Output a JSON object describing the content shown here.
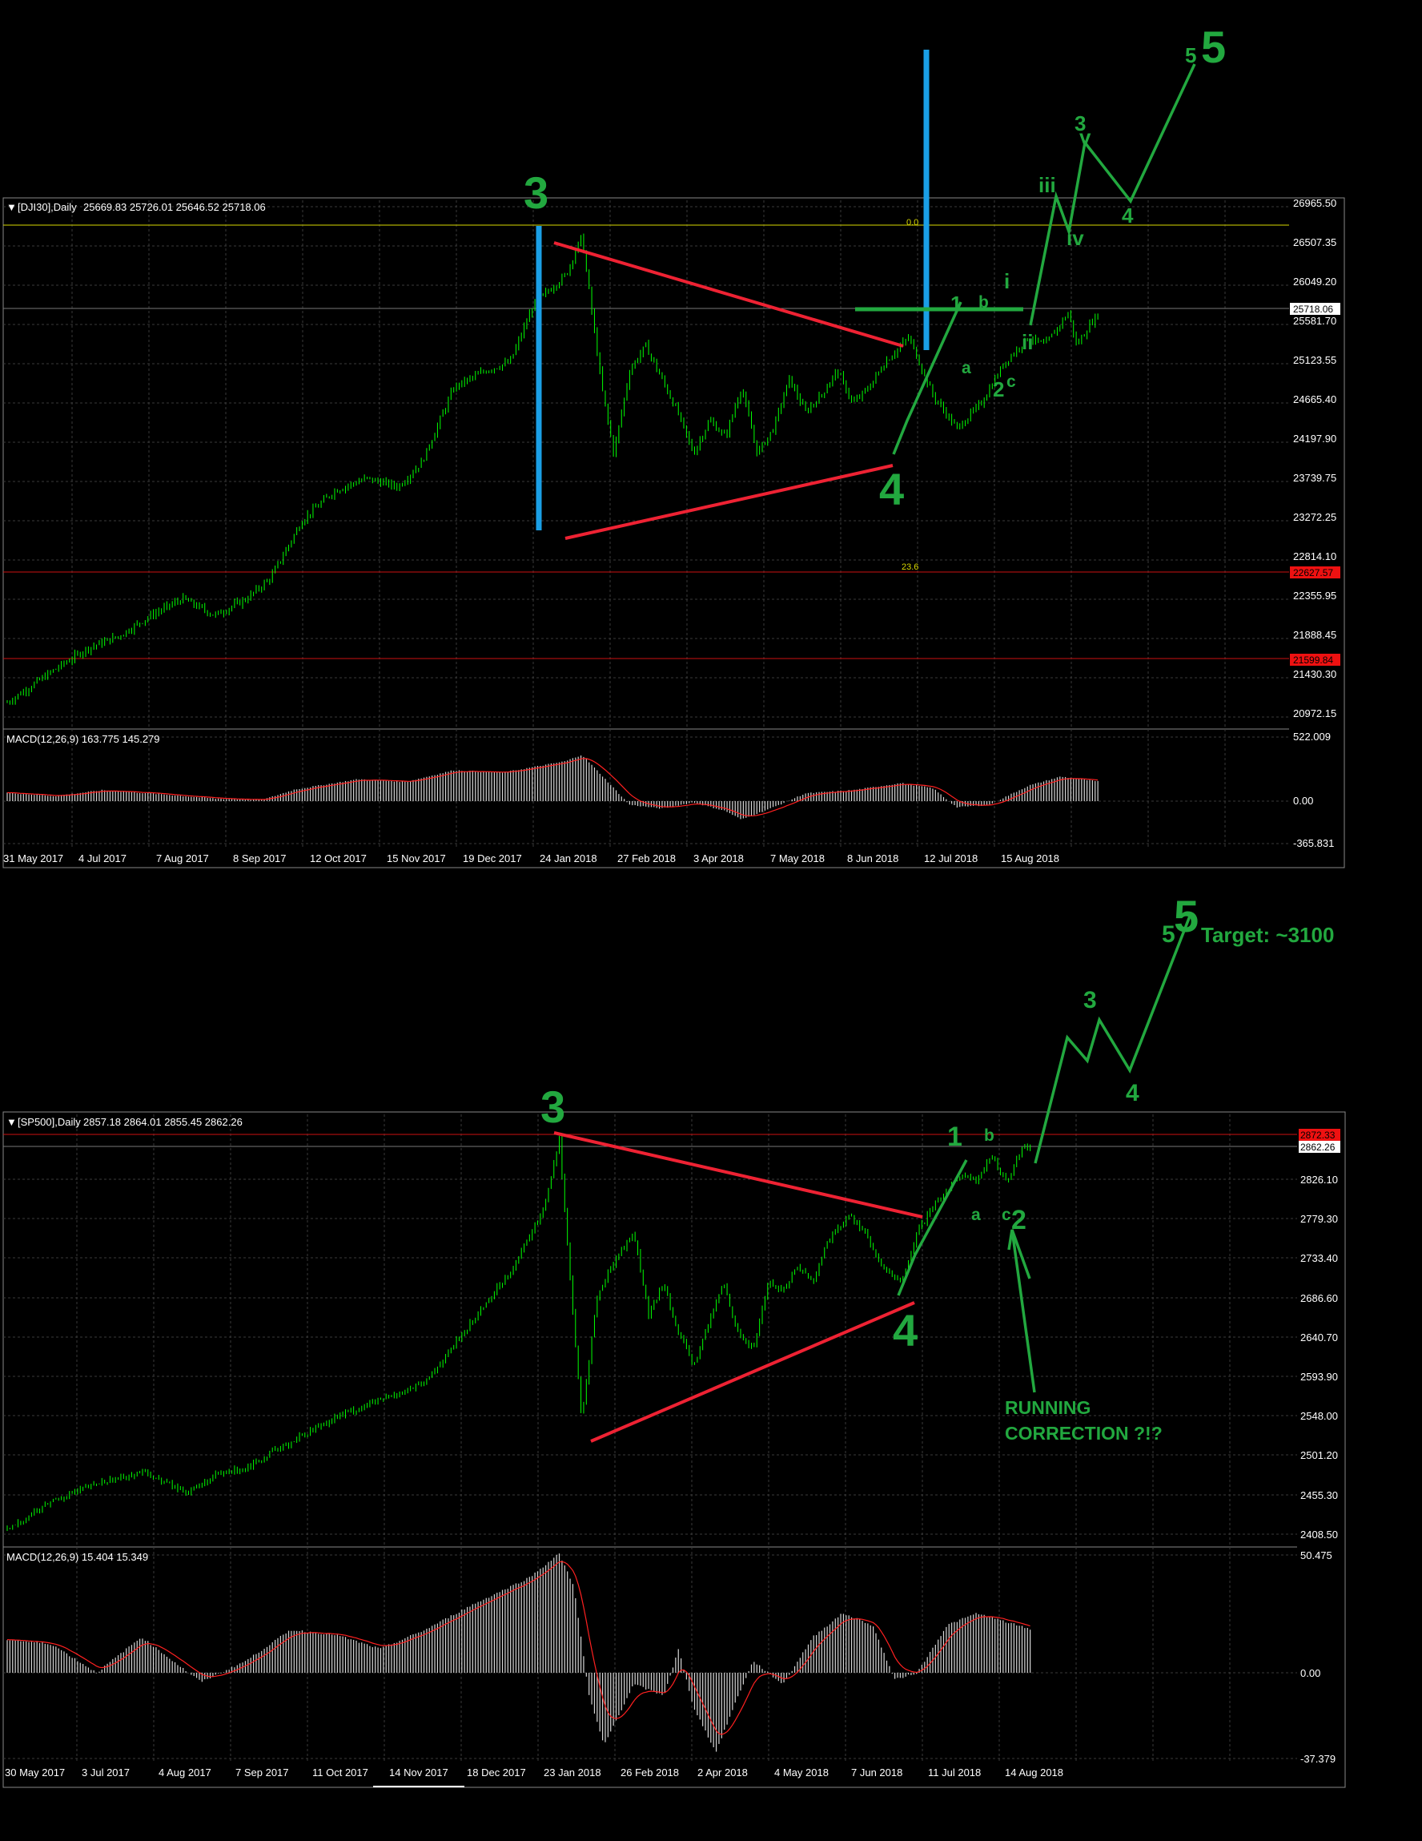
{
  "colors": {
    "background": "#000000",
    "grid": "#3a3a3a",
    "candle": "#00ff00",
    "wave": "#22a83f",
    "trend": "#ee2233",
    "marker": "#1a9fe6",
    "signal": "#ff2020",
    "hist": "#d8d8d8",
    "fib": "#d8d800",
    "text": "#ffffff"
  },
  "chart_data": [
    {
      "type": "candlestick",
      "title": "[DJI30],Daily",
      "ohlc": "25669.83 25726.01 25646.52 25718.06",
      "price_ticks": [
        "26965.50",
        "26507.35",
        "26049.20",
        "25581.70",
        "25123.55",
        "24665.40",
        "24197.90",
        "23739.75",
        "23272.25",
        "22814.10",
        "22355.95",
        "21888.45",
        "21430.30",
        "20972.15"
      ],
      "ylim": [
        20700,
        27050
      ],
      "current_price": "25718.06",
      "level_labels": [
        "22627.57",
        "21599.84"
      ],
      "fib_levels": [
        {
          "label": "0.0",
          "value": 26700
        },
        {
          "label": "23.6",
          "value": 22627.57
        }
      ],
      "red_levels": [
        22627.57,
        21599.84
      ],
      "date_labels": [
        "31 May 2017",
        "4 Jul 2017",
        "7 Aug 2017",
        "8 Sep 2017",
        "12 Oct 2017",
        "15 Nov 2017",
        "19 Dec 2017",
        "24 Jan 2018",
        "27 Feb 2018",
        "3 Apr 2018",
        "7 May 2018",
        "8 Jun 2018",
        "12 Jul 2018",
        "15 Aug 2018"
      ],
      "macd": {
        "label": "MACD(12,26,9) 163.775 145.279",
        "ticks": [
          "522.009",
          "0.00",
          "-365.831"
        ],
        "ylim": [
          -365.831,
          522.009
        ]
      },
      "price_path": [
        [
          0,
          21000
        ],
        [
          0.06,
          21400
        ],
        [
          0.1,
          21650
        ],
        [
          0.14,
          21800
        ],
        [
          0.18,
          22050
        ],
        [
          0.22,
          22250
        ],
        [
          0.26,
          22050
        ],
        [
          0.3,
          22250
        ],
        [
          0.33,
          22500
        ],
        [
          0.37,
          23200
        ],
        [
          0.41,
          23550
        ],
        [
          0.45,
          23700
        ],
        [
          0.49,
          23600
        ],
        [
          0.52,
          23900
        ],
        [
          0.56,
          24800
        ],
        [
          0.6,
          25000
        ],
        [
          0.63,
          25100
        ],
        [
          0.66,
          25800
        ],
        [
          0.7,
          26150
        ],
        [
          0.72,
          26617
        ],
        [
          0.745,
          24800
        ],
        [
          0.76,
          24000
        ],
        [
          0.78,
          25000
        ],
        [
          0.8,
          25300
        ],
        [
          0.84,
          24500
        ],
        [
          0.86,
          24000
        ],
        [
          0.88,
          24400
        ],
        [
          0.9,
          24200
        ],
        [
          0.92,
          24800
        ],
        [
          0.94,
          24000
        ],
        [
          0.96,
          24300
        ],
        [
          0.98,
          24900
        ],
        [
          1.0,
          24500
        ],
        [
          1.02,
          24700
        ],
        [
          1.04,
          25000
        ],
        [
          1.06,
          24600
        ],
        [
          1.08,
          24800
        ],
        [
          1.1,
          25100
        ],
        [
          1.13,
          25400
        ],
        [
          1.16,
          24700
        ],
        [
          1.19,
          24300
        ],
        [
          1.22,
          24600
        ],
        [
          1.25,
          25100
        ],
        [
          1.28,
          25400
        ],
        [
          1.3,
          25300
        ],
        [
          1.33,
          25700
        ],
        [
          1.34,
          25300
        ],
        [
          1.36,
          25600
        ],
        [
          1.37,
          25700
        ]
      ],
      "macd_path": [
        [
          0,
          65
        ],
        [
          0.06,
          40
        ],
        [
          0.12,
          85
        ],
        [
          0.18,
          60
        ],
        [
          0.26,
          20
        ],
        [
          0.32,
          10
        ],
        [
          0.36,
          90
        ],
        [
          0.44,
          170
        ],
        [
          0.5,
          150
        ],
        [
          0.56,
          240
        ],
        [
          0.62,
          220
        ],
        [
          0.7,
          310
        ],
        [
          0.72,
          360
        ],
        [
          0.745,
          200
        ],
        [
          0.78,
          -30
        ],
        [
          0.82,
          -60
        ],
        [
          0.86,
          -10
        ],
        [
          0.9,
          -80
        ],
        [
          0.92,
          -150
        ],
        [
          0.96,
          -50
        ],
        [
          1.0,
          60
        ],
        [
          1.06,
          85
        ],
        [
          1.12,
          140
        ],
        [
          1.16,
          100
        ],
        [
          1.19,
          -50
        ],
        [
          1.23,
          -30
        ],
        [
          1.28,
          120
        ],
        [
          1.32,
          190
        ],
        [
          1.37,
          150
        ]
      ]
    },
    {
      "type": "candlestick",
      "title": "[SP500],Daily",
      "ohlc": "2857.18 2864.01 2855.45 2862.26",
      "price_ticks": [
        "2872.33",
        "2862.26",
        "2826.10",
        "2779.30",
        "2733.40",
        "2686.60",
        "2640.70",
        "2593.90",
        "2548.00",
        "2501.20",
        "2455.30",
        "2408.50"
      ],
      "ylim": [
        2387,
        2900
      ],
      "current_price": "2862.26",
      "level_labels": [
        "2872.33"
      ],
      "red_levels": [
        2872.33
      ],
      "date_labels": [
        "30 May 2017",
        "3 Jul 2017",
        "4 Aug 2017",
        "7 Sep 2017",
        "11 Oct 2017",
        "14 Nov 2017",
        "18 Dec 2017",
        "23 Jan 2018",
        "26 Feb 2018",
        "2 Apr 2018",
        "4 May 2018",
        "7 Jun 2018",
        "11 Jul 2018",
        "14 Aug 2018"
      ],
      "macd": {
        "label": "MACD(12,26,9) 15.404 15.349",
        "ticks": [
          "50.475",
          "0.00",
          "-37.379"
        ],
        "ylim": [
          -37.379,
          50.475
        ]
      },
      "price_path": [
        [
          0,
          2405
        ],
        [
          0.06,
          2440
        ],
        [
          0.12,
          2460
        ],
        [
          0.18,
          2475
        ],
        [
          0.24,
          2450
        ],
        [
          0.28,
          2470
        ],
        [
          0.32,
          2480
        ],
        [
          0.38,
          2510
        ],
        [
          0.44,
          2540
        ],
        [
          0.5,
          2560
        ],
        [
          0.56,
          2580
        ],
        [
          0.62,
          2650
        ],
        [
          0.68,
          2720
        ],
        [
          0.72,
          2790
        ],
        [
          0.74,
          2872
        ],
        [
          0.755,
          2700
        ],
        [
          0.77,
          2535
        ],
        [
          0.79,
          2680
        ],
        [
          0.81,
          2720
        ],
        [
          0.84,
          2760
        ],
        [
          0.86,
          2660
        ],
        [
          0.88,
          2700
        ],
        [
          0.9,
          2640
        ],
        [
          0.92,
          2600
        ],
        [
          0.94,
          2650
        ],
        [
          0.96,
          2700
        ],
        [
          0.98,
          2640
        ],
        [
          1.0,
          2620
        ],
        [
          1.02,
          2700
        ],
        [
          1.04,
          2690
        ],
        [
          1.06,
          2720
        ],
        [
          1.08,
          2700
        ],
        [
          1.1,
          2750
        ],
        [
          1.13,
          2780
        ],
        [
          1.15,
          2760
        ],
        [
          1.17,
          2720
        ],
        [
          1.2,
          2700
        ],
        [
          1.22,
          2760
        ],
        [
          1.25,
          2800
        ],
        [
          1.28,
          2830
        ],
        [
          1.3,
          2820
        ],
        [
          1.32,
          2850
        ],
        [
          1.34,
          2820
        ],
        [
          1.36,
          2860
        ],
        [
          1.375,
          2862
        ]
      ],
      "macd_path": [
        [
          0,
          14
        ],
        [
          0.06,
          12
        ],
        [
          0.12,
          0
        ],
        [
          0.18,
          15
        ],
        [
          0.26,
          -4
        ],
        [
          0.32,
          5
        ],
        [
          0.38,
          18
        ],
        [
          0.44,
          16
        ],
        [
          0.5,
          10
        ],
        [
          0.56,
          18
        ],
        [
          0.62,
          28
        ],
        [
          0.7,
          40
        ],
        [
          0.74,
          50
        ],
        [
          0.76,
          36
        ],
        [
          0.78,
          -10
        ],
        [
          0.8,
          -32
        ],
        [
          0.84,
          -5
        ],
        [
          0.88,
          -10
        ],
        [
          0.9,
          10
        ],
        [
          0.92,
          -15
        ],
        [
          0.95,
          -35
        ],
        [
          0.98,
          -10
        ],
        [
          1.0,
          5
        ],
        [
          1.04,
          -5
        ],
        [
          1.08,
          15
        ],
        [
          1.12,
          25
        ],
        [
          1.16,
          20
        ],
        [
          1.19,
          -3
        ],
        [
          1.22,
          0
        ],
        [
          1.26,
          20
        ],
        [
          1.3,
          25
        ],
        [
          1.375,
          18
        ]
      ]
    }
  ],
  "annotations": {
    "top": {
      "wave3": "3",
      "wave4": "4",
      "big5": "5",
      "small5": "5",
      "iii": "iii",
      "iv": "iv",
      "v": "v",
      "sub3": "3",
      "sub4": "4",
      "i": "i",
      "ii": "ii",
      "w1": "1",
      "a": "a",
      "b": "b",
      "w2": "2",
      "c": "c"
    },
    "bottom": {
      "wave3": "3",
      "wave4": "4",
      "big5": "5",
      "small5": "5",
      "target": "Target: ~3100",
      "sub3": "3",
      "sub4": "4",
      "w1": "1",
      "a": "a",
      "b": "b",
      "c": "c",
      "w2": "2",
      "running1": "RUNNING",
      "running2": "CORRECTION ?!?"
    }
  }
}
